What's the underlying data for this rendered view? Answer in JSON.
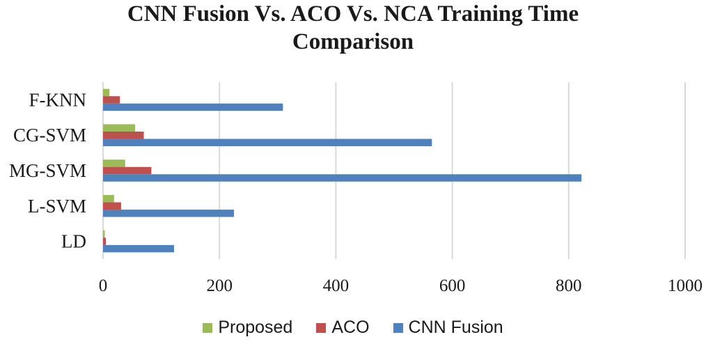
{
  "chart_data": {
    "type": "bar",
    "orientation": "horizontal",
    "title_lines": [
      "CNN Fusion Vs. ACO Vs. NCA Training Time",
      "Comparison"
    ],
    "categories": [
      "LD",
      "L-SVM",
      "MG-SVM",
      "CG-SVM",
      "F-KNN"
    ],
    "series": [
      {
        "name": "Proposed",
        "color": "#9BBB59",
        "values": [
          3,
          19,
          38,
          55,
          11
        ]
      },
      {
        "name": "ACO",
        "color": "#C0504D",
        "values": [
          5,
          31,
          83,
          70,
          29
        ]
      },
      {
        "name": "CNN Fusion",
        "color": "#4F81BD",
        "values": [
          122,
          225,
          822,
          565,
          309
        ]
      }
    ],
    "xlim": [
      0,
      1000
    ],
    "xticks": [
      "0",
      "200",
      "400",
      "600",
      "800",
      "1000"
    ],
    "grid": "vertical",
    "legend_position": "bottom",
    "xlabel": "",
    "ylabel": ""
  }
}
